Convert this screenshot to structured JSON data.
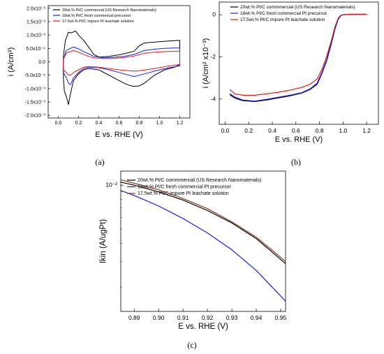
{
  "chart_data": [
    {
      "panel": "(a)",
      "type": "line",
      "xlabel": "E vs. RHE (V)",
      "ylabel": "i (A/cm²)",
      "xlim": [
        -0.1,
        1.3
      ],
      "ylim": [
        -0.0021,
        0.0021
      ],
      "xticks": [
        0.0,
        0.2,
        0.4,
        0.6,
        0.8,
        1.0,
        1.2
      ],
      "xtick_labels": [
        "0.0",
        "0.2",
        "0.4",
        "0.6",
        "0.8",
        "1.0",
        "1.2"
      ],
      "yticks": [
        0.002,
        0.0015,
        0.001,
        0.0005,
        0.0,
        -0.0005,
        -0.001,
        -0.0015,
        -0.002
      ],
      "ytick_labels": [
        "2.0x10⁻³",
        "1.5x10⁻³",
        "1.0x10⁻³",
        "5.0x10⁻⁴",
        "0.0",
        "-5.0x10⁻⁴",
        "-1.0x10⁻³",
        "-1.5x10⁻³",
        "-2.0x10⁻³"
      ],
      "legend_position": "top-left",
      "series": [
        {
          "name": "20wt.% Pt/C commercial (US Research Nanomaterials)",
          "color": "#000000",
          "x": [
            0.05,
            0.07,
            0.1,
            0.13,
            0.17,
            0.2,
            0.25,
            0.3,
            0.35,
            0.4,
            0.5,
            0.6,
            0.65,
            0.7,
            0.75,
            0.8,
            0.85,
            0.9,
            1.0,
            1.1,
            1.2,
            1.2,
            1.15,
            1.05,
            0.95,
            0.9,
            0.85,
            0.8,
            0.75,
            0.7,
            0.65,
            0.6,
            0.5,
            0.4,
            0.3,
            0.25,
            0.2,
            0.15,
            0.12,
            0.1,
            0.08,
            0.06,
            0.05
          ],
          "y": [
            0.0002,
            0.0008,
            0.0011,
            0.00108,
            0.00115,
            0.001,
            0.0008,
            0.00055,
            0.00028,
            0.00018,
            0.0002,
            0.00026,
            0.0003,
            0.00035,
            0.0004,
            0.0006,
            0.0007,
            0.00072,
            0.00075,
            0.00078,
            0.0008,
            -0.0001,
            -0.0002,
            -0.0003,
            -0.0005,
            -0.00065,
            -0.0008,
            -0.0009,
            -0.00092,
            -0.00088,
            -0.0008,
            -0.0007,
            -0.0005,
            -0.0003,
            -0.00025,
            -0.0003,
            -0.00045,
            -0.0007,
            -0.0012,
            -0.0016,
            -0.0013,
            -0.0011,
            -0.0006
          ]
        },
        {
          "name": "18wt.% Pt/C fresh commercial precursor",
          "color": "#1a1ae6",
          "x": [
            0.05,
            0.08,
            0.12,
            0.15,
            0.2,
            0.25,
            0.3,
            0.35,
            0.45,
            0.55,
            0.65,
            0.75,
            0.85,
            0.95,
            1.05,
            1.2,
            1.2,
            1.1,
            1.0,
            0.9,
            0.8,
            0.75,
            0.7,
            0.6,
            0.5,
            0.4,
            0.3,
            0.25,
            0.2,
            0.15,
            0.12,
            0.1,
            0.08,
            0.05
          ],
          "y": [
            0.0001,
            0.00042,
            0.0005,
            0.00055,
            0.00048,
            0.00038,
            0.0003,
            0.0002,
            0.00015,
            0.00017,
            0.0002,
            0.00028,
            0.00042,
            0.00047,
            0.0005,
            0.00052,
            -0.00015,
            -0.00022,
            -0.0003,
            -0.0004,
            -0.0005,
            -0.00055,
            -0.0005,
            -0.0004,
            -0.0003,
            -0.00022,
            -0.0002,
            -0.00025,
            -0.0004,
            -0.0006,
            -0.00085,
            -0.0008,
            -0.0006,
            -0.0004
          ]
        },
        {
          "name": "17.5wt.% Pt/C impure Pt leachate solution",
          "color": "#e01a1a",
          "x": [
            0.05,
            0.08,
            0.12,
            0.15,
            0.2,
            0.25,
            0.3,
            0.35,
            0.45,
            0.55,
            0.65,
            0.75,
            0.85,
            0.95,
            1.05,
            1.2,
            1.2,
            1.1,
            1.0,
            0.9,
            0.8,
            0.75,
            0.7,
            0.6,
            0.5,
            0.4,
            0.3,
            0.25,
            0.2,
            0.15,
            0.12,
            0.1,
            0.08,
            0.05
          ],
          "y": [
            0.0001,
            0.00032,
            0.00038,
            0.00042,
            0.00036,
            0.00028,
            0.0002,
            0.00015,
            0.00012,
            0.00013,
            0.00016,
            0.00022,
            0.00032,
            0.00036,
            0.00038,
            0.0004,
            -0.0001,
            -0.00015,
            -0.00022,
            -0.00028,
            -0.00033,
            -0.00035,
            -0.00033,
            -0.0003,
            -0.00025,
            -0.0002,
            -0.00018,
            -0.0002,
            -0.0003,
            -0.0004,
            -0.0005,
            -0.0005,
            -0.0004,
            -0.0003
          ]
        }
      ]
    },
    {
      "panel": "(b)",
      "type": "line",
      "xlabel": "E vs. RHE (V)",
      "ylabel": "i (A/cm² x10⁻³)",
      "xlim": [
        -0.05,
        1.3
      ],
      "ylim": [
        -5.2,
        0.6
      ],
      "xticks": [
        0.0,
        0.2,
        0.4,
        0.6,
        0.8,
        1.0,
        1.2
      ],
      "xtick_labels": [
        "0.0",
        "0.2",
        "0.4",
        "0.6",
        "0.8",
        "1.0",
        "1.2"
      ],
      "yticks": [
        0,
        -2,
        -4
      ],
      "ytick_labels": [
        "0",
        "-2",
        "-4"
      ],
      "legend_position": "top-left",
      "series": [
        {
          "name": "20wt.% Pt/C commmercial (US Research Nanomaterials)",
          "color": "#000000",
          "x": [
            0.04,
            0.08,
            0.15,
            0.25,
            0.35,
            0.45,
            0.55,
            0.65,
            0.72,
            0.78,
            0.82,
            0.86,
            0.9,
            0.93,
            0.96,
            0.98,
            1.0,
            1.05,
            1.1,
            1.2
          ],
          "y": [
            -3.8,
            -3.95,
            -4.08,
            -4.12,
            -4.05,
            -3.95,
            -3.85,
            -3.72,
            -3.55,
            -3.3,
            -2.8,
            -2.2,
            -1.4,
            -0.7,
            -0.2,
            -0.05,
            0.0,
            0.02,
            0.02,
            0.02
          ]
        },
        {
          "name": "18wt.% Pt/C fresh commercial Pt precursor",
          "color": "#1a1ae6",
          "x": [
            0.04,
            0.08,
            0.15,
            0.25,
            0.35,
            0.45,
            0.55,
            0.65,
            0.72,
            0.78,
            0.82,
            0.86,
            0.9,
            0.93,
            0.96,
            0.98,
            1.0,
            1.05,
            1.1,
            1.2
          ],
          "y": [
            -3.75,
            -3.9,
            -4.05,
            -4.1,
            -4.02,
            -3.92,
            -3.82,
            -3.7,
            -3.52,
            -3.25,
            -2.75,
            -2.15,
            -1.35,
            -0.65,
            -0.18,
            -0.04,
            0.0,
            0.02,
            0.02,
            0.02
          ]
        },
        {
          "name": "17.5wt.% Pt/C impure Pt leachate solution",
          "color": "#e01a1a",
          "x": [
            0.04,
            0.08,
            0.15,
            0.25,
            0.35,
            0.45,
            0.55,
            0.65,
            0.72,
            0.78,
            0.82,
            0.86,
            0.9,
            0.93,
            0.96,
            0.98,
            1.0,
            1.05,
            1.1,
            1.2
          ],
          "y": [
            -3.55,
            -3.75,
            -3.82,
            -3.82,
            -3.75,
            -3.68,
            -3.58,
            -3.45,
            -3.3,
            -3.05,
            -2.6,
            -2.0,
            -1.25,
            -0.6,
            -0.15,
            -0.03,
            0.0,
            0.02,
            0.02,
            0.02
          ]
        }
      ]
    },
    {
      "panel": "(c)",
      "type": "line",
      "xlabel": "E vs. RHE (V)",
      "ylabel": "Ikin (A/ugPt)",
      "xscale": "linear",
      "yscale": "log",
      "xlim": [
        0.8845,
        0.952
      ],
      "ylim": [
        0.00136,
        0.0125
      ],
      "xticks": [
        0.89,
        0.9,
        0.91,
        0.92,
        0.93,
        0.94,
        0.95
      ],
      "xtick_labels": [
        "0.89",
        "0.90",
        "0.91",
        "0.92",
        "0.93",
        "0.94",
        "0.95"
      ],
      "yticks": [
        0.01
      ],
      "ytick_labels": [
        "10⁻²"
      ],
      "legend_position": "top-left",
      "series": [
        {
          "name": "20wt.% Pt/C commmercial (US Research Nanomaterials)",
          "color": "#000000",
          "x": [
            0.8845,
            0.89,
            0.9,
            0.91,
            0.92,
            0.93,
            0.94,
            0.952
          ],
          "y": [
            0.0105,
            0.01,
            0.009,
            0.0079,
            0.0067,
            0.0055,
            0.0043,
            0.0029
          ]
        },
        {
          "name": "18wt.% Pt/C fresh commercial Pt precursor",
          "color": "#1a1ae6",
          "x": [
            0.8845,
            0.89,
            0.9,
            0.91,
            0.92,
            0.93,
            0.94,
            0.952
          ],
          "y": [
            0.0092,
            0.0085,
            0.0072,
            0.0059,
            0.0047,
            0.0036,
            0.0026,
            0.0016
          ]
        },
        {
          "name": "17.5wt.% Pt/C impure Pt leachate solution",
          "color": "#8b3a1a",
          "x": [
            0.8845,
            0.89,
            0.9,
            0.91,
            0.92,
            0.93,
            0.94,
            0.952
          ],
          "y": [
            0.0109,
            0.0103,
            0.0093,
            0.0081,
            0.0069,
            0.0056,
            0.0044,
            0.003
          ]
        }
      ]
    }
  ]
}
